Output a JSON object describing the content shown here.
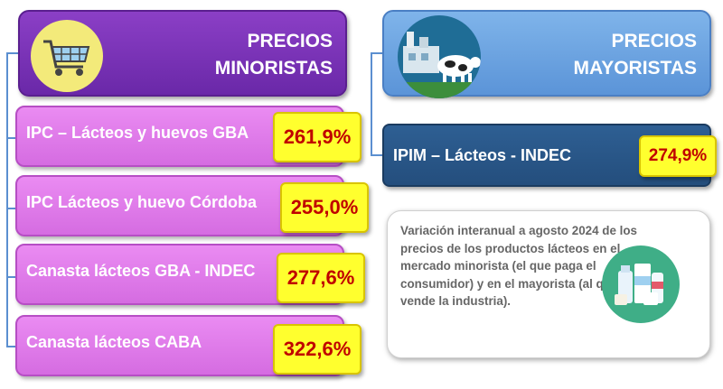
{
  "minoristas": {
    "title_line1": "PRECIOS",
    "title_line2": "MINORISTAS",
    "icon": "shopping-cart-icon",
    "items": [
      {
        "label": "IPC – Lácteos y huevos GBA",
        "value": "261,9%"
      },
      {
        "label": "IPC Lácteos y huevo Córdoba",
        "value": "255,0%"
      },
      {
        "label": "Canasta lácteos GBA - INDEC",
        "value": "277,6%"
      },
      {
        "label": "Canasta lácteos CABA",
        "value": "322,6%"
      }
    ]
  },
  "mayoristas": {
    "title_line1": "PRECIOS",
    "title_line2": "MAYORISTAS",
    "icon": "dairy-factory-cow-icon",
    "item": {
      "label": "IPIM – Lácteos - INDEC",
      "value": "274,9%"
    }
  },
  "note": {
    "text": "Variación interanual a agosto 2024 de los precios de los productos lácteos en el mercado minorista (el que paga el consumidor) y en el mayorista (al que vende la industria).",
    "icon": "dairy-products-icon"
  },
  "colors": {
    "minorista_header": "#7a33b8",
    "minorista_item": "#e07ae8",
    "mayorista_header": "#6fa6e2",
    "mayorista_item": "#2a578a",
    "value_bg": "#ffff2e",
    "value_text": "#c00000",
    "connector": "#5b8fd0"
  }
}
